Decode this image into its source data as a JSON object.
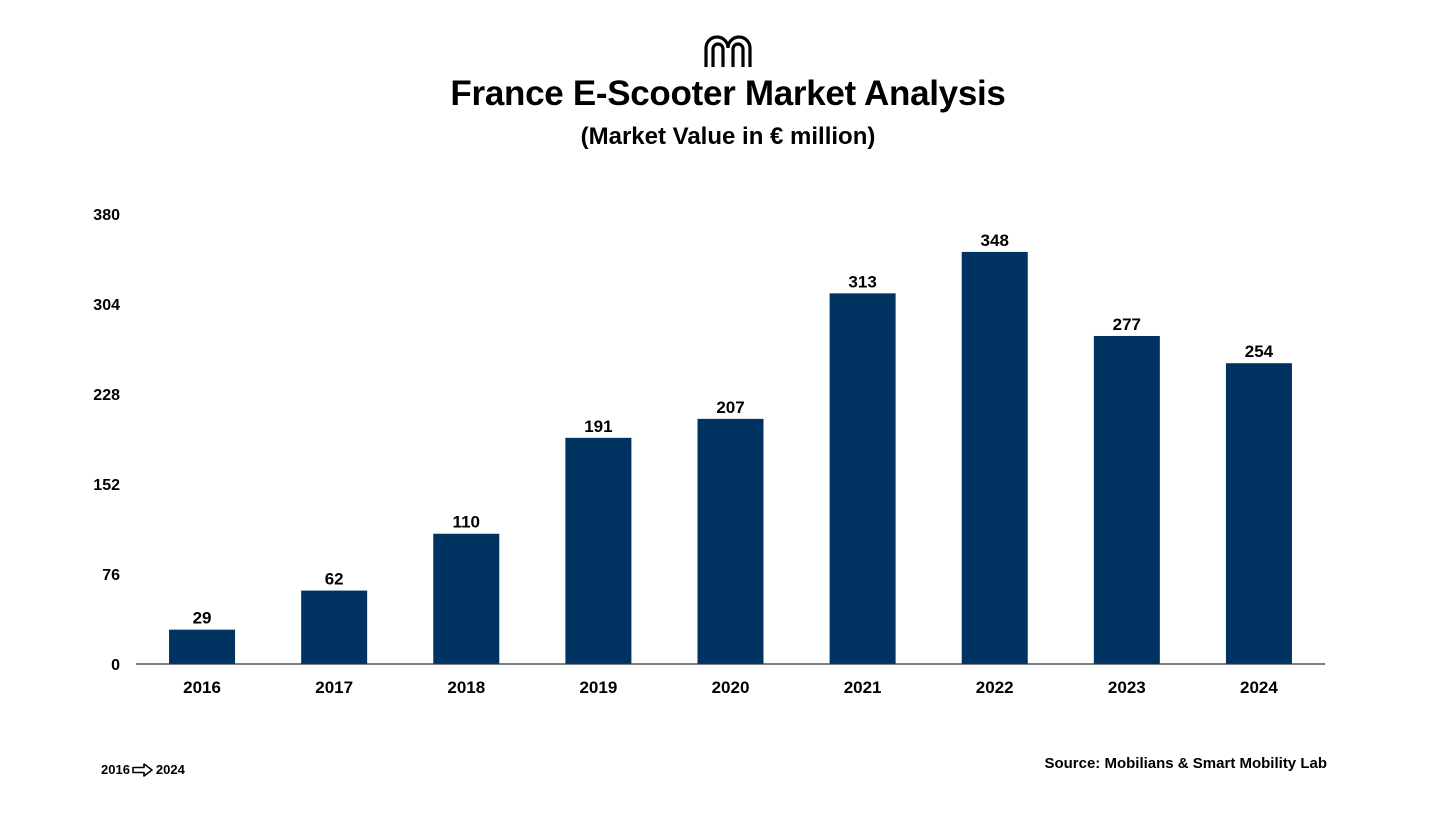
{
  "header": {
    "logo_icon": "mobilians-arches-logo-icon",
    "title": "France E-Scooter Market Analysis",
    "subtitle": "(Market Value in € million)"
  },
  "chart_data": {
    "type": "bar",
    "title": "France E-Scooter Market Analysis",
    "subtitle": "(Market Value in € million)",
    "categories": [
      "2016",
      "2017",
      "2018",
      "2019",
      "2020",
      "2021",
      "2022",
      "2023",
      "2024"
    ],
    "values": [
      29,
      62,
      110,
      191,
      207,
      313,
      348,
      277,
      254
    ],
    "ylim": [
      0,
      380
    ],
    "yticks": [
      0,
      76,
      152,
      228,
      304,
      380
    ],
    "ytick_labels": [
      "0",
      "76",
      "152",
      "228",
      "304",
      "380"
    ],
    "data_labels": [
      "29",
      "62",
      "110",
      "191",
      "207",
      "313",
      "348",
      "277",
      "254"
    ],
    "grid": false,
    "legend": "none",
    "bar_color": "#003262"
  },
  "footer": {
    "range_start": "2016",
    "range_end": "2024",
    "arrow_icon": "right-arrow-icon",
    "source": "Source: Mobilians & Smart Mobility Lab"
  }
}
